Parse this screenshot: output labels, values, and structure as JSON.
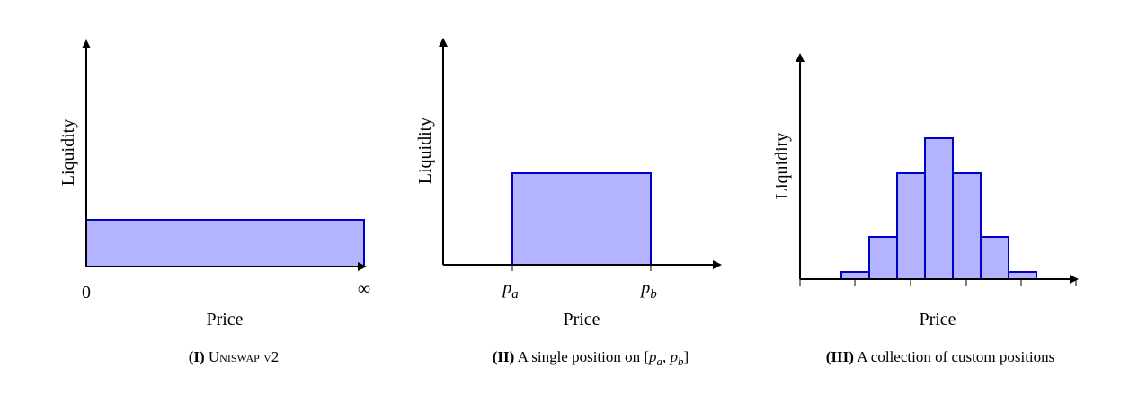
{
  "panels": [
    {
      "y_label": "Liquidity",
      "x_label": "Price",
      "x_ticks": [
        "0",
        "∞"
      ],
      "caption": {
        "number": "(I)",
        "text": "Uniswap v2"
      }
    },
    {
      "y_label": "Liquidity",
      "x_label": "Price",
      "x_ticks": [
        {
          "base": "p",
          "sub": "a"
        },
        {
          "base": "p",
          "sub": "b"
        }
      ],
      "caption": {
        "number": "(II)",
        "text": "A single position on",
        "open": "[",
        "p1": "p",
        "s1": "a",
        "sep": ",",
        "p2": "p",
        "s2": "b",
        "close": "]"
      }
    },
    {
      "y_label": "Liquidity",
      "x_label": "Price",
      "caption": {
        "number": "(III)",
        "text": "A collection of custom positions"
      }
    }
  ]
}
